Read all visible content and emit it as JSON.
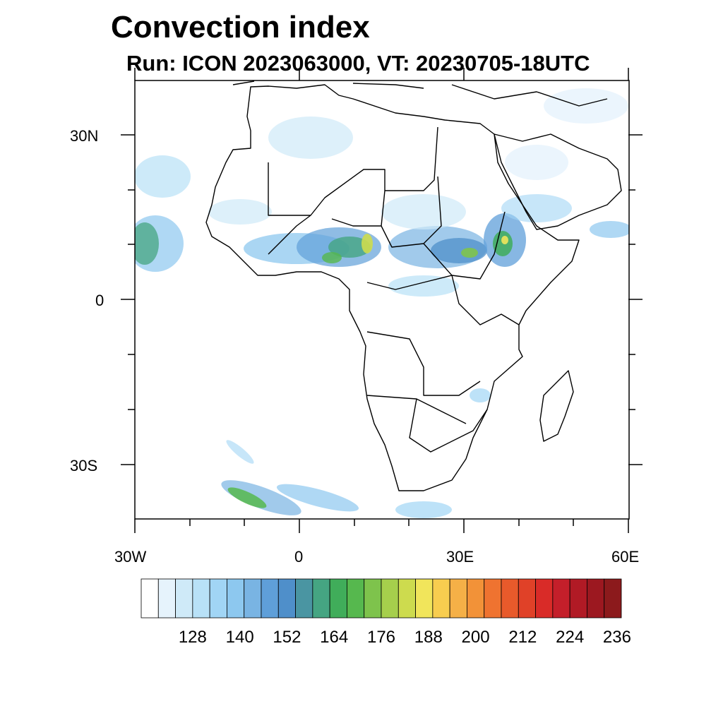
{
  "title": "Convection index",
  "subtitle": "Run: ICON 2023063000,  VT: 20230705-18UTC",
  "map": {
    "projection": "cylindrical-equidistant",
    "lon_range": [
      -30,
      60
    ],
    "lat_range": [
      -40,
      40
    ],
    "x_tick_labels": [
      "30W",
      "0",
      "30E",
      "60E"
    ],
    "y_tick_labels": [
      "30N",
      "0",
      "30S"
    ],
    "coastline_color": "#000000"
  },
  "colorbar": {
    "levels": [
      "128",
      "140",
      "152",
      "164",
      "176",
      "188",
      "200",
      "212",
      "224",
      "236"
    ],
    "colors": [
      "#ffffff",
      "#e6f3fc",
      "#cfeaf8",
      "#b8e1f7",
      "#a1d5f5",
      "#8dc8ef",
      "#79b4e3",
      "#5f9fd9",
      "#4f8fca",
      "#4a95a2",
      "#45a582",
      "#40ad5a",
      "#56b84e",
      "#7ec34c",
      "#a6cf4c",
      "#cddb4e",
      "#f1e55b",
      "#f8cd4f",
      "#f5b047",
      "#f29238",
      "#ef7330",
      "#e85a2b",
      "#e04128",
      "#d92b28",
      "#c41f2a",
      "#b11a25",
      "#9c1820",
      "#8c1a1c"
    ]
  }
}
